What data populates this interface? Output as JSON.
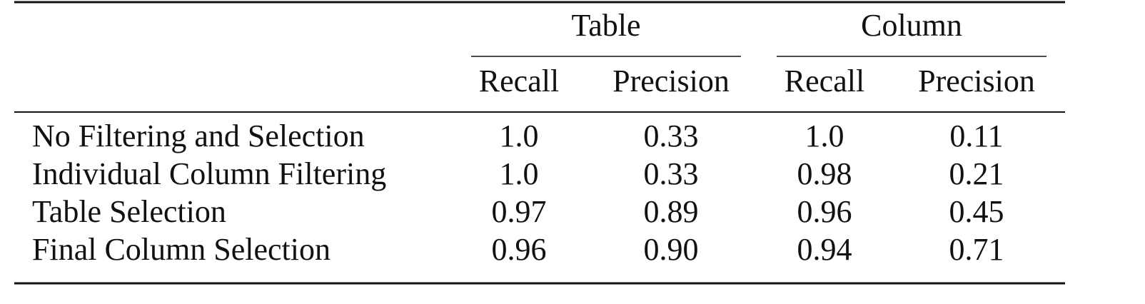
{
  "table": {
    "groups": [
      "Table",
      "Column"
    ],
    "subheaders": [
      "Recall",
      "Precision",
      "Recall",
      "Precision"
    ],
    "rows": [
      {
        "label": "No Filtering and Selection",
        "cells": [
          "1.0",
          "0.33",
          "1.0",
          "0.11"
        ]
      },
      {
        "label": "Individual Column Filtering",
        "cells": [
          "1.0",
          "0.33",
          "0.98",
          "0.21"
        ]
      },
      {
        "label": "Table Selection",
        "cells": [
          "0.97",
          "0.89",
          "0.96",
          "0.45"
        ]
      },
      {
        "label": "Final Column Selection",
        "cells": [
          "0.96",
          "0.90",
          "0.94",
          "0.71"
        ]
      }
    ]
  }
}
